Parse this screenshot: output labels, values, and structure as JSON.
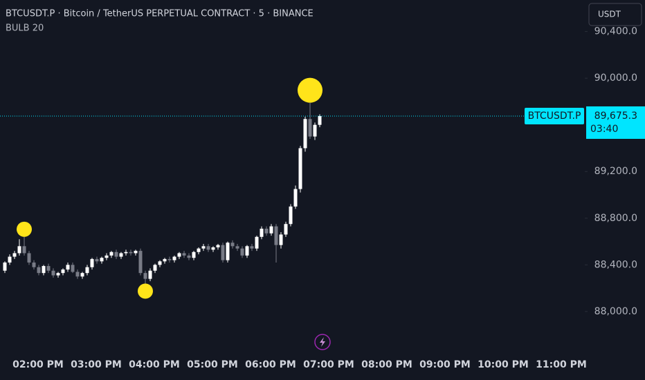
{
  "chart_data": {
    "type": "candlestick",
    "title": "BTCUSDT.P · Bitcoin / TetherUS PERPETUAL CONTRACT · 5 · BINANCE",
    "indicator": "BULB 20",
    "currency": "USDT",
    "symbol_label": "BTCUSDT.P",
    "countdown": "03:40",
    "x_labels": [
      "02:00 PM",
      "03:00 PM",
      "04:00 PM",
      "05:00 PM",
      "06:00 PM",
      "07:00 PM",
      "08:00 PM",
      "09:00 PM",
      "10:00 PM",
      "11:00 PM"
    ],
    "open": [
      88350,
      88420,
      88470,
      88500,
      88560,
      88500,
      88420,
      88380,
      88330,
      88390,
      88350,
      88310,
      88330,
      88360,
      88400,
      88340,
      88300,
      88330,
      88380,
      88450,
      88430,
      88460,
      88480,
      88510,
      88470,
      88500,
      88510,
      88500,
      88520,
      88330,
      88280,
      88350,
      88400,
      88430,
      88450,
      88440,
      88470,
      88500,
      88480,
      88460,
      88510,
      88540,
      88560,
      88530,
      88550,
      88570,
      88440,
      88590,
      88560,
      88540,
      88480,
      88560,
      88540,
      88640,
      88710,
      88670,
      88730,
      88570,
      88660,
      88750,
      88900,
      89050,
      89400,
      89650,
      89500,
      89600
    ],
    "high": [
      88430,
      88490,
      88520,
      88620,
      88640,
      88520,
      88440,
      88400,
      88400,
      88410,
      88370,
      88340,
      88370,
      88420,
      88420,
      88360,
      88340,
      88400,
      88460,
      88470,
      88470,
      88500,
      88520,
      88530,
      88510,
      88530,
      88530,
      88530,
      88540,
      88350,
      88370,
      88410,
      88440,
      88460,
      88470,
      88480,
      88510,
      88520,
      88500,
      88520,
      88550,
      88580,
      88580,
      88560,
      88580,
      88590,
      88600,
      88610,
      88580,
      88560,
      88570,
      88580,
      88650,
      88730,
      88730,
      88750,
      88750,
      88680,
      88770,
      88920,
      89080,
      89420,
      89670,
      89790,
      89620,
      89690
    ],
    "low": [
      88330,
      88400,
      88450,
      88480,
      88480,
      88400,
      88360,
      88310,
      88310,
      88330,
      88290,
      88290,
      88310,
      88340,
      88330,
      88280,
      88280,
      88310,
      88360,
      88410,
      88410,
      88440,
      88460,
      88450,
      88450,
      88480,
      88480,
      88480,
      88310,
      88240,
      88260,
      88330,
      88380,
      88410,
      88420,
      88420,
      88450,
      88460,
      88440,
      88440,
      88490,
      88520,
      88510,
      88510,
      88530,
      88420,
      88420,
      88540,
      88520,
      88460,
      88460,
      88520,
      88520,
      88620,
      88650,
      88650,
      88420,
      88540,
      88640,
      88730,
      88880,
      89020,
      89370,
      89480,
      89470,
      89580
    ],
    "close": [
      88420,
      88470,
      88500,
      88560,
      88500,
      88420,
      88380,
      88330,
      88390,
      88350,
      88310,
      88330,
      88360,
      88400,
      88340,
      88300,
      88330,
      88380,
      88450,
      88430,
      88460,
      88480,
      88510,
      88470,
      88500,
      88510,
      88500,
      88520,
      88330,
      88280,
      88350,
      88400,
      88430,
      88450,
      88440,
      88470,
      88500,
      88480,
      88460,
      88510,
      88540,
      88560,
      88530,
      88550,
      88570,
      88440,
      88590,
      88560,
      88540,
      88480,
      88560,
      88540,
      88640,
      88710,
      88670,
      88730,
      88570,
      88660,
      88750,
      88900,
      89050,
      89400,
      89650,
      89500,
      89600,
      89675.3
    ],
    "up_color": "#ffffff",
    "down_color": "#787b86",
    "signals": [
      {
        "index": 4,
        "at": "high"
      },
      {
        "index": 29,
        "at": "low"
      },
      {
        "index": 63,
        "at": "high"
      }
    ],
    "signal_color": "#ffe41a",
    "last_price": {
      "value": 89675.3,
      "label": "89,675.3"
    },
    "last_color": "#00e5ff",
    "ylim": [
      87650,
      90670
    ],
    "yticks": [
      {
        "value": 88000,
        "label": "88,000.0"
      },
      {
        "value": 88400,
        "label": "88,400.0"
      },
      {
        "value": 88800,
        "label": "88,800.0"
      },
      {
        "value": 89200,
        "label": "89,200.0"
      },
      {
        "value": 90000,
        "label": "90,000.0"
      },
      {
        "value": 90400,
        "label": "90,400.0"
      }
    ]
  }
}
